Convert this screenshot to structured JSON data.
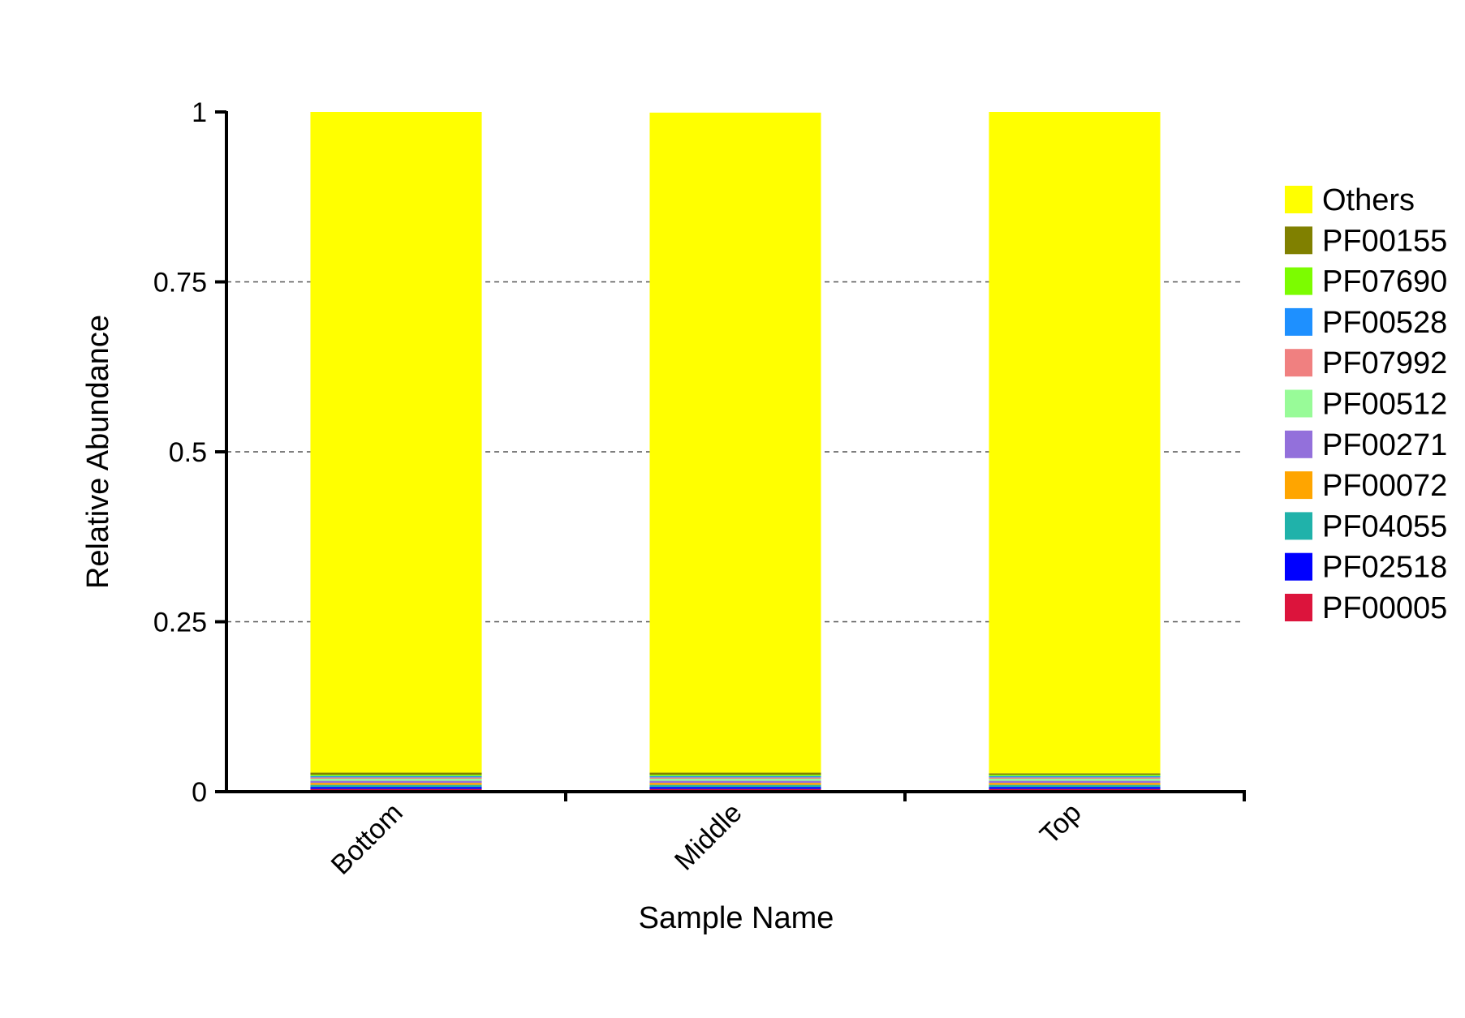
{
  "chart_data": {
    "type": "bar",
    "stacked": true,
    "xlabel": "Sample Name",
    "ylabel": "Relative Abundance",
    "categories": [
      "Bottom",
      "Middle",
      "Top"
    ],
    "ylim": [
      0,
      1
    ],
    "yticks": [
      0,
      0.25,
      0.5,
      0.75,
      1
    ],
    "ytick_labels": [
      "0",
      "0.25",
      "0.5",
      "0.75",
      "1"
    ],
    "grid": "horizontal dashed",
    "legend_position": "right",
    "series": [
      {
        "name": "PF00005",
        "color": "#dc143c",
        "values": [
          0.004,
          0.004,
          0.004
        ]
      },
      {
        "name": "PF02518",
        "color": "#0000ff",
        "values": [
          0.003,
          0.003,
          0.003
        ]
      },
      {
        "name": "PF04055",
        "color": "#20b2aa",
        "values": [
          0.003,
          0.003,
          0.003
        ]
      },
      {
        "name": "PF00072",
        "color": "#ffa500",
        "values": [
          0.003,
          0.003,
          0.003
        ]
      },
      {
        "name": "PF00271",
        "color": "#9370db",
        "values": [
          0.003,
          0.003,
          0.003
        ]
      },
      {
        "name": "PF00512",
        "color": "#98fb98",
        "values": [
          0.003,
          0.003,
          0.003
        ]
      },
      {
        "name": "PF07992",
        "color": "#f08080",
        "values": [
          0.002,
          0.002,
          0.002
        ]
      },
      {
        "name": "PF00528",
        "color": "#1e90ff",
        "values": [
          0.002,
          0.002,
          0.002
        ]
      },
      {
        "name": "PF07690",
        "color": "#7cfc00",
        "values": [
          0.002,
          0.002,
          0.002
        ]
      },
      {
        "name": "PF00155",
        "color": "#808000",
        "values": [
          0.003,
          0.003,
          0.002
        ]
      },
      {
        "name": "Others",
        "color": "#ffff00",
        "values": [
          0.972,
          0.971,
          0.973
        ]
      }
    ]
  }
}
